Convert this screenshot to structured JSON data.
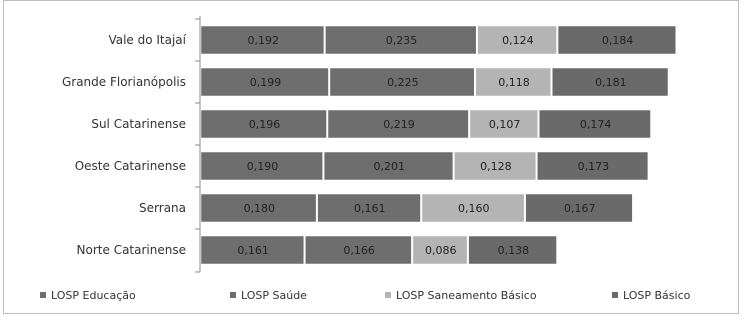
{
  "chart_data": {
    "type": "bar",
    "orientation": "horizontal",
    "stacked": true,
    "categories": [
      "Vale do Itajaí",
      "Grande Florianópolis",
      "Sul Catarinense",
      "Oeste Catarinense",
      "Serrana",
      "Norte Catarinense"
    ],
    "series": [
      {
        "name": "LOSP Educação",
        "values": [
          0.192,
          0.199,
          0.196,
          0.19,
          0.18,
          0.161
        ],
        "labels": [
          "0,192",
          "0,199",
          "0,196",
          "0,190",
          "0,180",
          "0,161"
        ],
        "color": "#6e6e6e"
      },
      {
        "name": "LOSP Saúde",
        "values": [
          0.235,
          0.225,
          0.219,
          0.201,
          0.161,
          0.166
        ],
        "labels": [
          "0,235",
          "0,225",
          "0,219",
          "0,201",
          "0,161",
          "0,166"
        ],
        "color": "#6e6e6e"
      },
      {
        "name": "LOSP Saneamento Básico",
        "values": [
          0.124,
          0.118,
          0.107,
          0.128,
          0.16,
          0.086
        ],
        "labels": [
          "0,124",
          "0,118",
          "0,107",
          "0,128",
          "0,160",
          "0,086"
        ],
        "color": "#b4b4b4"
      },
      {
        "name": "LOSP Básico",
        "values": [
          0.184,
          0.181,
          0.174,
          0.173,
          0.167,
          0.138
        ],
        "labels": [
          "0,184",
          "0,181",
          "0,174",
          "0,173",
          "0,167",
          "0,138"
        ],
        "color": "#6a6a6a"
      }
    ],
    "legend_position": "bottom",
    "grid": false,
    "title": "",
    "xlabel": "",
    "ylabel": ""
  }
}
